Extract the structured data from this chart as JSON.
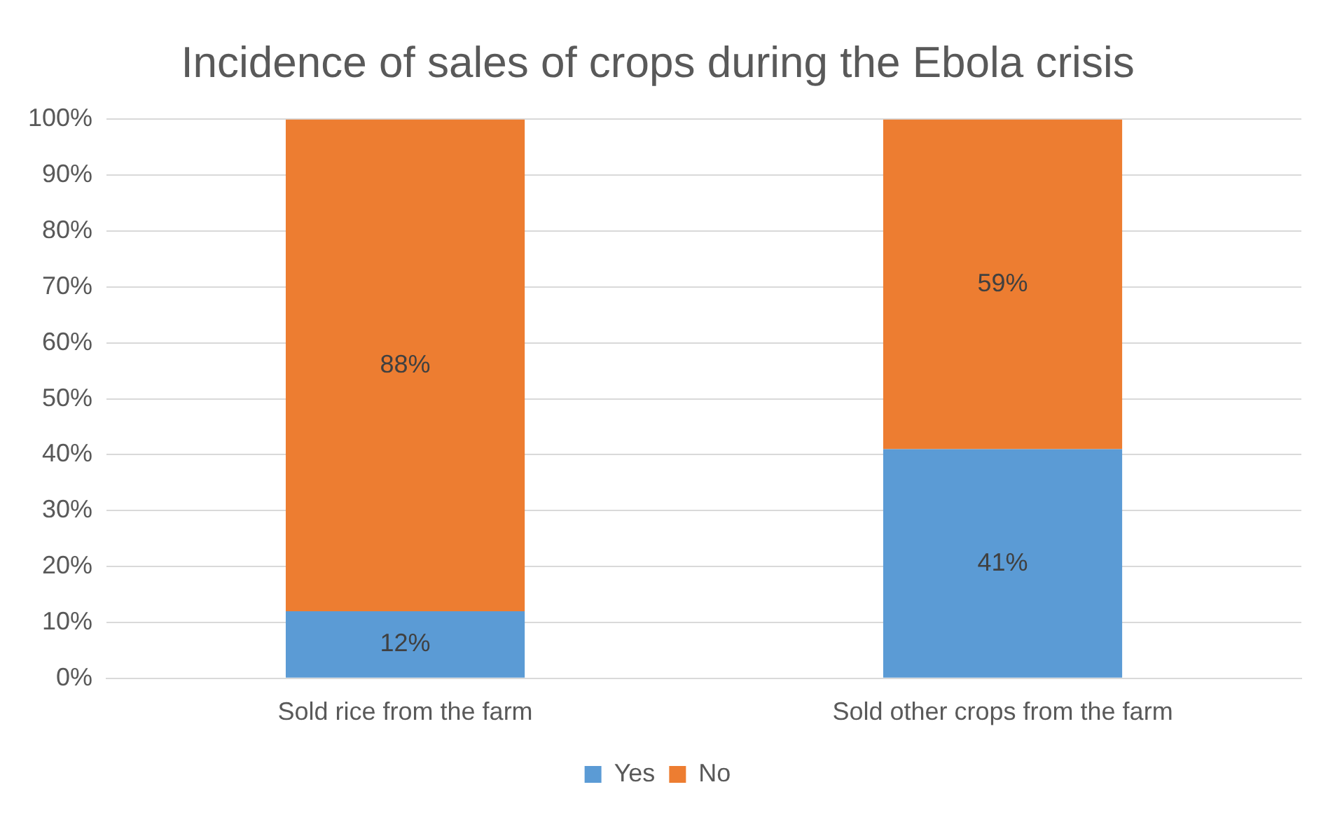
{
  "chart_data": {
    "type": "bar",
    "title": "Incidence of sales of crops during the Ebola crisis",
    "categories": [
      "Sold rice from the farm",
      "Sold other crops from the farm"
    ],
    "stacked": true,
    "series": [
      {
        "name": "Yes",
        "color": "#5b9bd5",
        "values": [
          12,
          41
        ],
        "value_labels": [
          "12%",
          "41%"
        ]
      },
      {
        "name": "No",
        "color": "#ed7d31",
        "values": [
          88,
          59
        ],
        "value_labels": [
          "88%",
          "59%"
        ]
      }
    ],
    "ylim": [
      0,
      100
    ],
    "yticks": [
      {
        "value": 0,
        "label": "0%"
      },
      {
        "value": 10,
        "label": "10%"
      },
      {
        "value": 20,
        "label": "20%"
      },
      {
        "value": 30,
        "label": "30%"
      },
      {
        "value": 40,
        "label": "40%"
      },
      {
        "value": 50,
        "label": "50%"
      },
      {
        "value": 60,
        "label": "60%"
      },
      {
        "value": 70,
        "label": "70%"
      },
      {
        "value": 80,
        "label": "80%"
      },
      {
        "value": 90,
        "label": "90%"
      },
      {
        "value": 100,
        "label": "100%"
      }
    ],
    "grid": "y",
    "legend": "bottom"
  }
}
